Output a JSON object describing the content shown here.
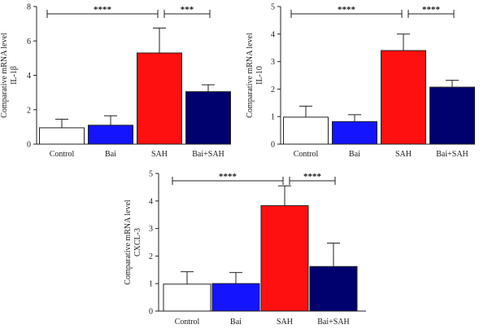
{
  "chart_data": [
    {
      "type": "bar",
      "ylabel": [
        "Comparative mRNA level",
        "IL-1β"
      ],
      "ylim": [
        0,
        8
      ],
      "yticks": [
        0,
        2,
        4,
        6,
        8
      ],
      "categories": [
        "Control",
        "Bai",
        "SAH",
        "Bai+SAH"
      ],
      "values": [
        0.95,
        1.1,
        5.3,
        3.05
      ],
      "errors": [
        0.5,
        0.55,
        1.45,
        0.4
      ],
      "bar_colors": [
        "#ffffff",
        "#1414ff",
        "#ff1010",
        "#00006e"
      ],
      "comparisons": [
        {
          "from": "Control",
          "to": "SAH",
          "label": "****"
        },
        {
          "from": "SAH",
          "to": "Bai+SAH",
          "label": "***"
        }
      ]
    },
    {
      "type": "bar",
      "ylabel": [
        "Comparative mRNA level",
        "IL-10"
      ],
      "ylim": [
        0,
        5
      ],
      "yticks": [
        0,
        1,
        2,
        3,
        4,
        5
      ],
      "categories": [
        "Control",
        "Bai",
        "SAH",
        "Bai+SAH"
      ],
      "values": [
        0.98,
        0.82,
        3.4,
        2.07
      ],
      "errors": [
        0.4,
        0.25,
        0.6,
        0.25
      ],
      "bar_colors": [
        "#ffffff",
        "#1414ff",
        "#ff1010",
        "#00006e"
      ],
      "comparisons": [
        {
          "from": "Control",
          "to": "SAH",
          "label": "****"
        },
        {
          "from": "SAH",
          "to": "Bai+SAH",
          "label": "****"
        }
      ]
    },
    {
      "type": "bar",
      "ylabel": [
        "Comparative mRNA level",
        "CXCL-3"
      ],
      "ylim": [
        0,
        5
      ],
      "yticks": [
        0,
        1,
        2,
        3,
        4,
        5
      ],
      "categories": [
        "Control",
        "Bai",
        "SAH",
        "Bai+SAH"
      ],
      "values": [
        0.98,
        1.0,
        3.83,
        1.62
      ],
      "errors": [
        0.45,
        0.4,
        0.72,
        0.85
      ],
      "bar_colors": [
        "#ffffff",
        "#1414ff",
        "#ff1010",
        "#00006e"
      ],
      "comparisons": [
        {
          "from": "Control",
          "to": "SAH",
          "label": "****"
        },
        {
          "from": "SAH",
          "to": "Bai+SAH",
          "label": "****"
        }
      ]
    }
  ]
}
